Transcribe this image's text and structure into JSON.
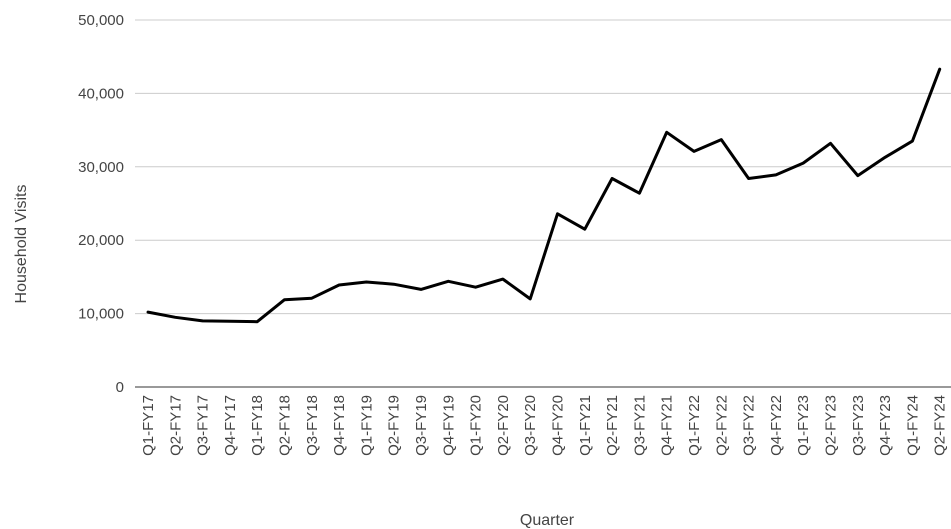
{
  "chart_data": {
    "type": "line",
    "title": "",
    "xlabel": "Quarter",
    "ylabel": "Household Visits",
    "ylim": [
      0,
      50000
    ],
    "yticks": [
      0,
      10000,
      20000,
      30000,
      40000,
      50000
    ],
    "ytick_labels": [
      "0",
      "10,000",
      "20,000",
      "30,000",
      "40,000",
      "50,000"
    ],
    "grid": true,
    "legend": "none",
    "line_color": "#000000",
    "grid_color": "#cccccc",
    "categories": [
      "Q1-FY17",
      "Q2-FY17",
      "Q3-FY17",
      "Q4-FY17",
      "Q1-FY18",
      "Q2-FY18",
      "Q3-FY18",
      "Q4-FY18",
      "Q1-FY19",
      "Q2-FY19",
      "Q3-FY19",
      "Q4-FY19",
      "Q1-FY20",
      "Q2-FY20",
      "Q3-FY20",
      "Q4-FY20",
      "Q1-FY21",
      "Q2-FY21",
      "Q3-FY21",
      "Q4-FY21",
      "Q1-FY22",
      "Q2-FY22",
      "Q3-FY22",
      "Q4-FY22",
      "Q1-FY23",
      "Q2-FY23",
      "Q3-FY23",
      "Q4-FY23",
      "Q1-FY24",
      "Q2-FY24"
    ],
    "series": [
      {
        "values": [
          10200,
          9500,
          9000,
          8950,
          8900,
          11900,
          12100,
          13900,
          14300,
          14000,
          13300,
          14400,
          13600,
          14700,
          12000,
          23600,
          21500,
          28400,
          26400,
          34700,
          32100,
          33700,
          28400,
          28900,
          30500,
          33200,
          28800,
          31300,
          33500,
          43300
        ]
      }
    ]
  }
}
